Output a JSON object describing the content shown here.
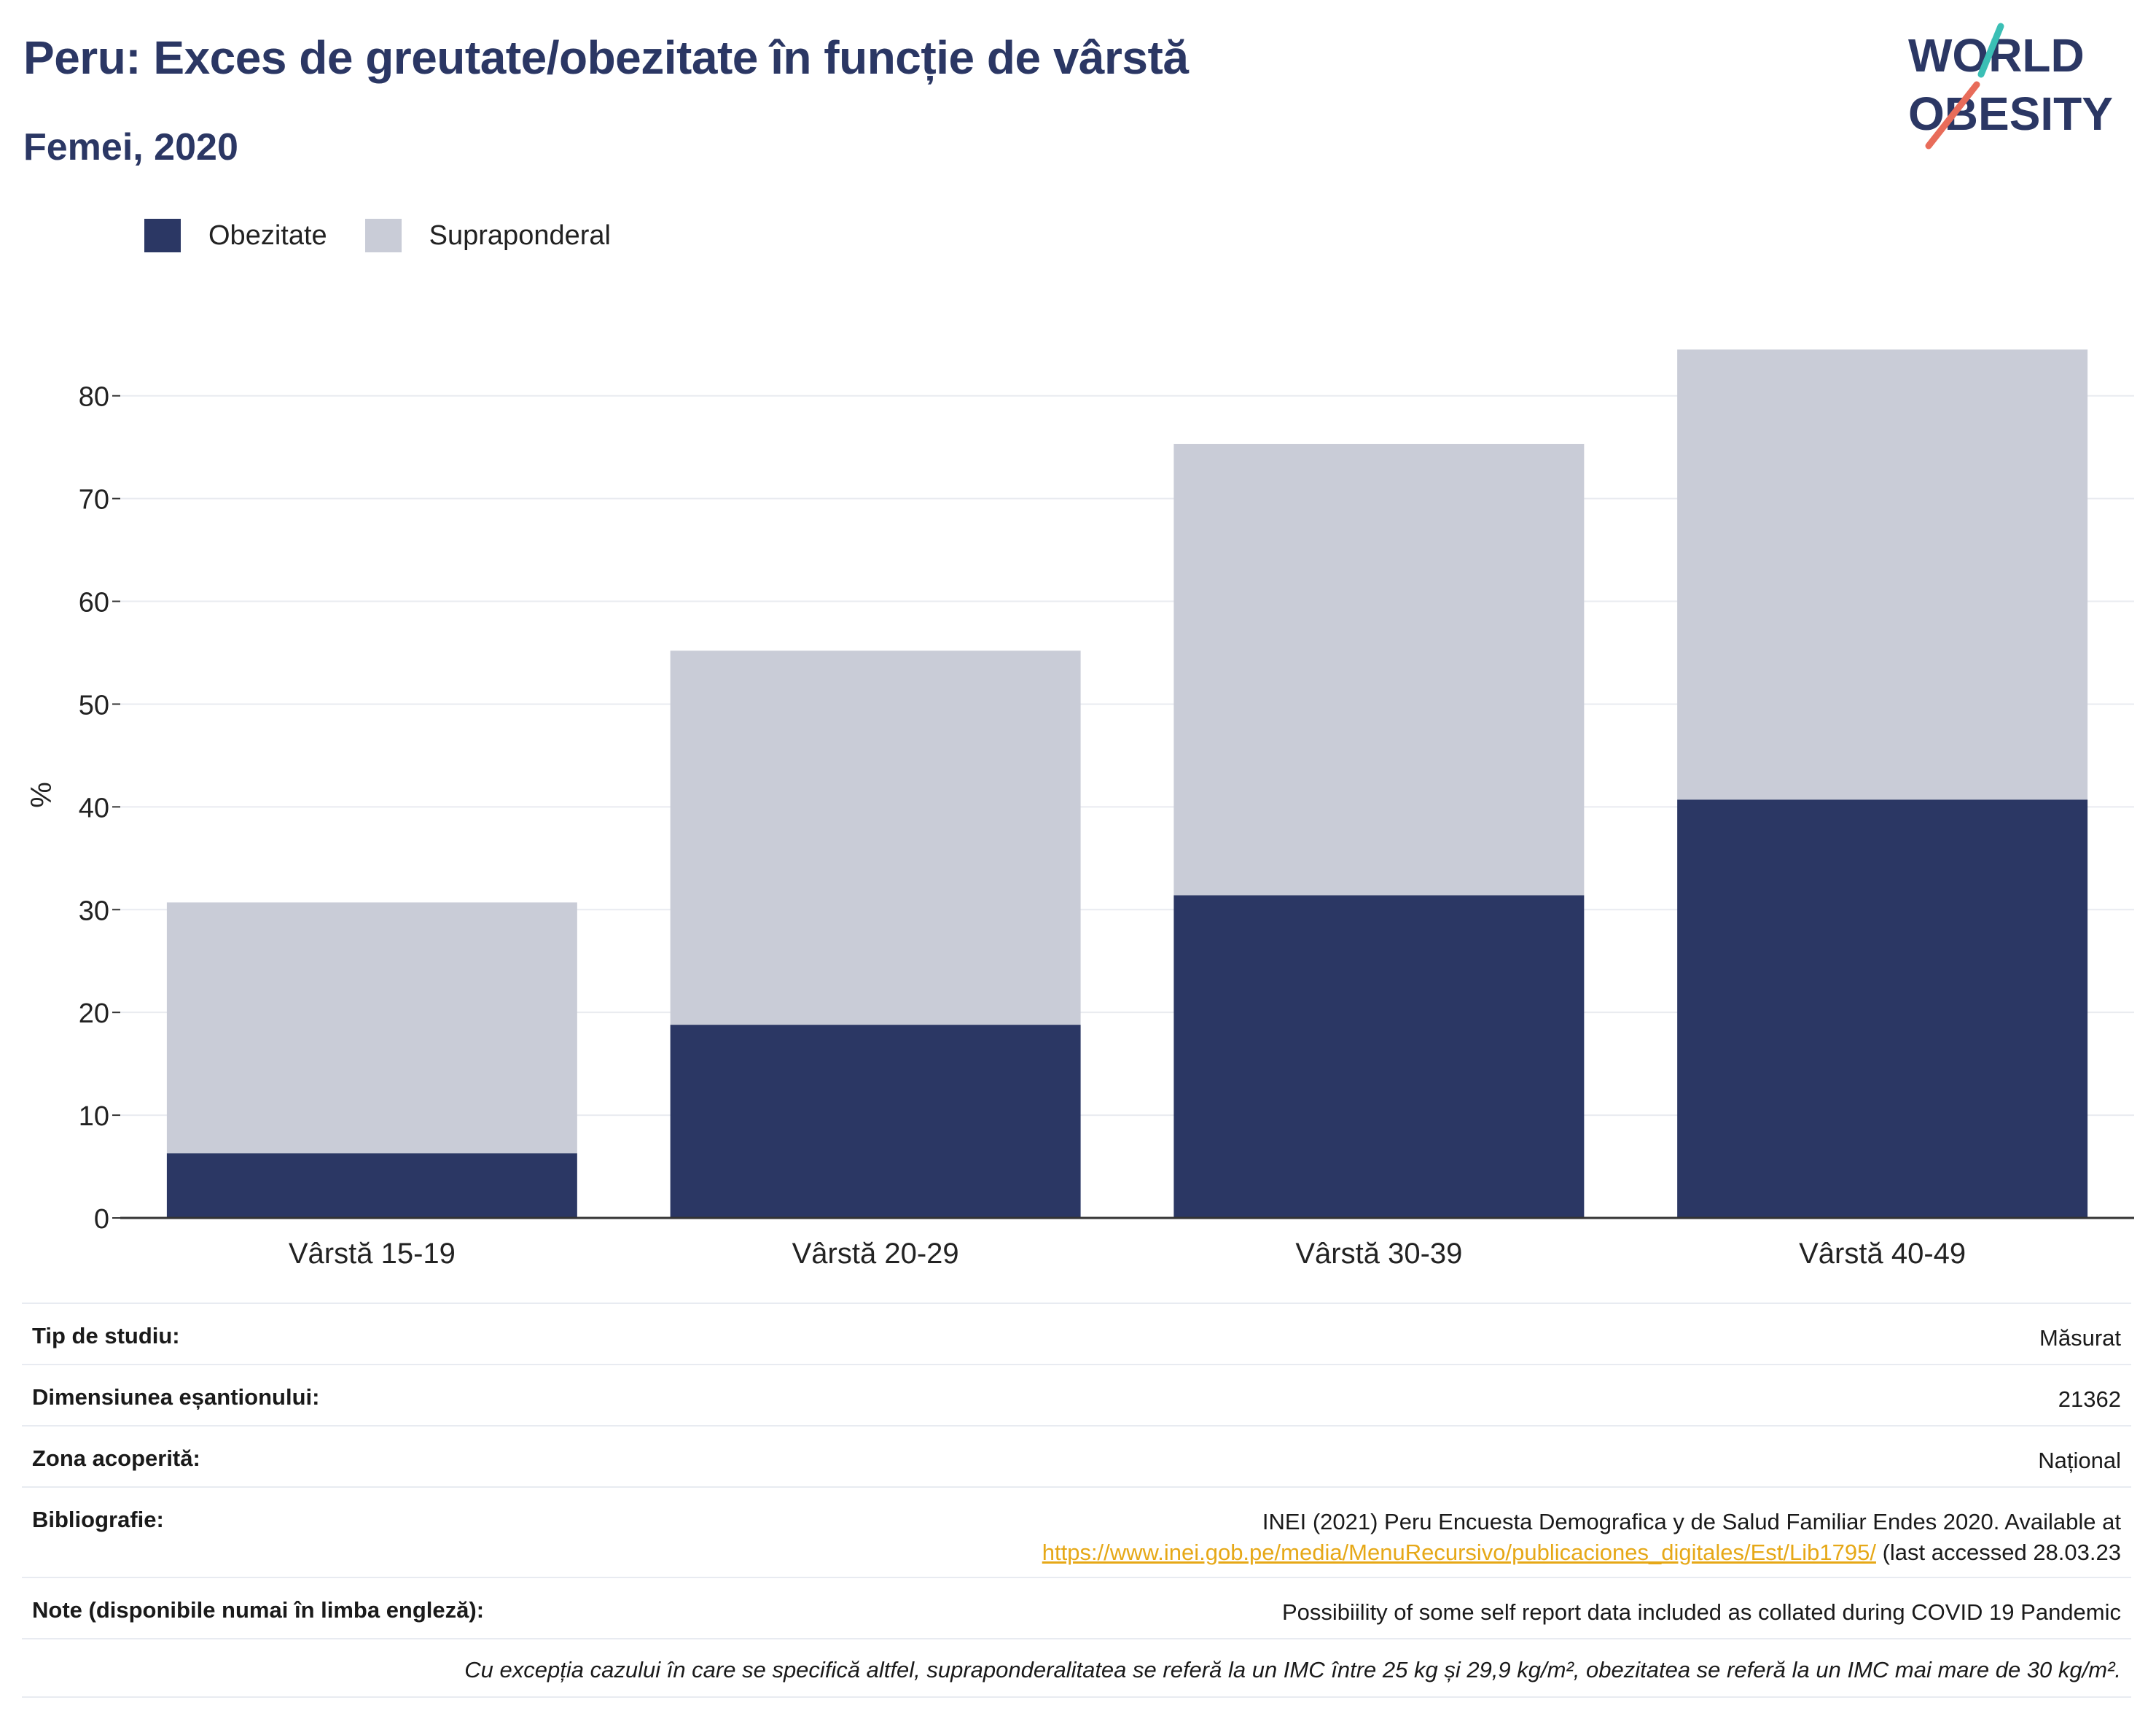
{
  "header": {
    "title": "Peru: Exces de greutate/obezitate în funcție de vârstă",
    "subtitle": "Femei, 2020"
  },
  "logo": {
    "line1": "WORLD",
    "line2": "OBESITY"
  },
  "chart_data": {
    "type": "bar",
    "stacked": true,
    "categories": [
      "Vârstă 15-19",
      "Vârstă 20-29",
      "Vârstă 30-39",
      "Vârstă 40-49"
    ],
    "series": [
      {
        "name": "Obezitate",
        "values": [
          6.3,
          18.8,
          31.4,
          40.7
        ],
        "color": "#2b3764"
      },
      {
        "name": "Supraponderal",
        "values": [
          24.4,
          36.4,
          43.9,
          43.8
        ],
        "color": "#c9ccd7"
      }
    ],
    "ylabel": "%",
    "ylim": [
      0,
      88
    ],
    "yticks": [
      0,
      10,
      20,
      30,
      40,
      50,
      60,
      70,
      80
    ],
    "grid": true,
    "legend_position": "top-left"
  },
  "info": {
    "study_type": {
      "label": "Tip de studiu:",
      "value": "Măsurat"
    },
    "sample_size": {
      "label": "Dimensiunea eșantionului:",
      "value": "21362"
    },
    "coverage": {
      "label": "Zona acoperită:",
      "value": "Național"
    },
    "bibliography": {
      "label": "Bibliografie:",
      "line1": "INEI (2021) Peru Encuesta Demografica y de Salud Familiar Endes 2020. Available at",
      "link": "https://www.inei.gob.pe/media/MenuRecursivo/publicaciones_digitales/Est/Lib1795/",
      "suffix": " (last accessed 28.03.23"
    },
    "notes": {
      "label": "Note (disponibile numai în limba engleză):",
      "value": "Possibiility of some self report data included as collated during COVID 19 Pandemic"
    },
    "footnote": "Cu excepția cazului în care se specifică altfel, supraponderalitatea se referă la un IMC între 25 kg și 29,9 kg/m², obezitatea se referă la un IMC mai mare de 30 kg/m²."
  }
}
